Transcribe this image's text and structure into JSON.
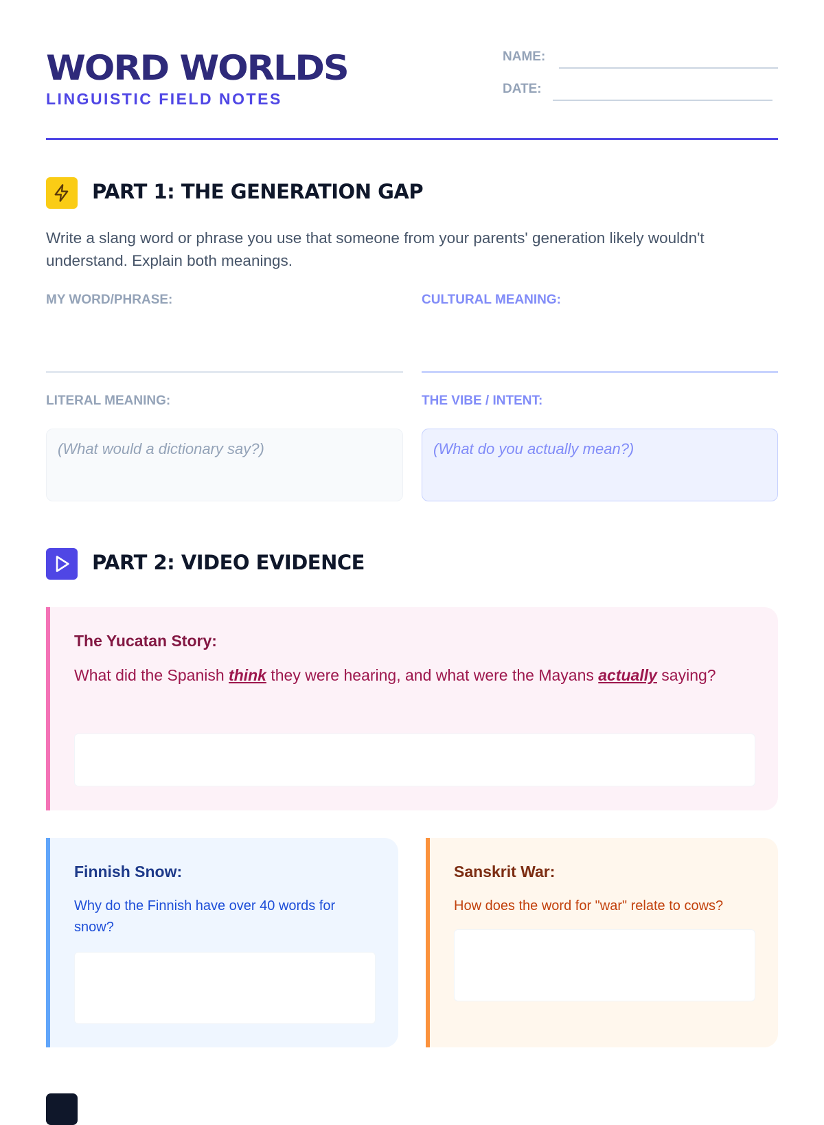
{
  "header": {
    "title": "WORD WORLDS",
    "subtitle": "LINGUISTIC FIELD NOTES",
    "name_label": "NAME:",
    "date_label": "DATE:"
  },
  "part1": {
    "icon": "lightning-icon",
    "heading": "PART 1: THE GENERATION GAP",
    "instructions": "Write a slang word or phrase you use that someone from your parents' generation likely wouldn't understand. Explain both meanings.",
    "word_label": "MY WORD/PHRASE:",
    "cultural_label": "CULTURAL MEANING:",
    "literal_label": "LITERAL MEANING:",
    "vibe_label": "THE VIBE / INTENT:",
    "literal_placeholder": "(What would a dictionary say?)",
    "vibe_placeholder": "(What do you actually mean?)"
  },
  "part2": {
    "icon": "play-icon",
    "heading": "PART 2: VIDEO EVIDENCE",
    "yucatan": {
      "title": "The Yucatan Story:",
      "q1": "What did the Spanish ",
      "em1": "think",
      "q2": " they were hearing, and what were the Mayans ",
      "em2": "actually",
      "q3": " saying?"
    },
    "finnish": {
      "title": "Finnish Snow:",
      "question": "Why do the Finnish have over 40 words for snow?"
    },
    "sanskrit": {
      "title": "Sanskrit War:",
      "question": "How does the word for \"war\" relate to cows?"
    }
  },
  "colors": {
    "accent": "#4f46e5",
    "title": "#2e2a7a",
    "yellow": "#facc15",
    "pink": "#f472b6",
    "blue": "#60a5fa",
    "orange": "#fb923c"
  }
}
